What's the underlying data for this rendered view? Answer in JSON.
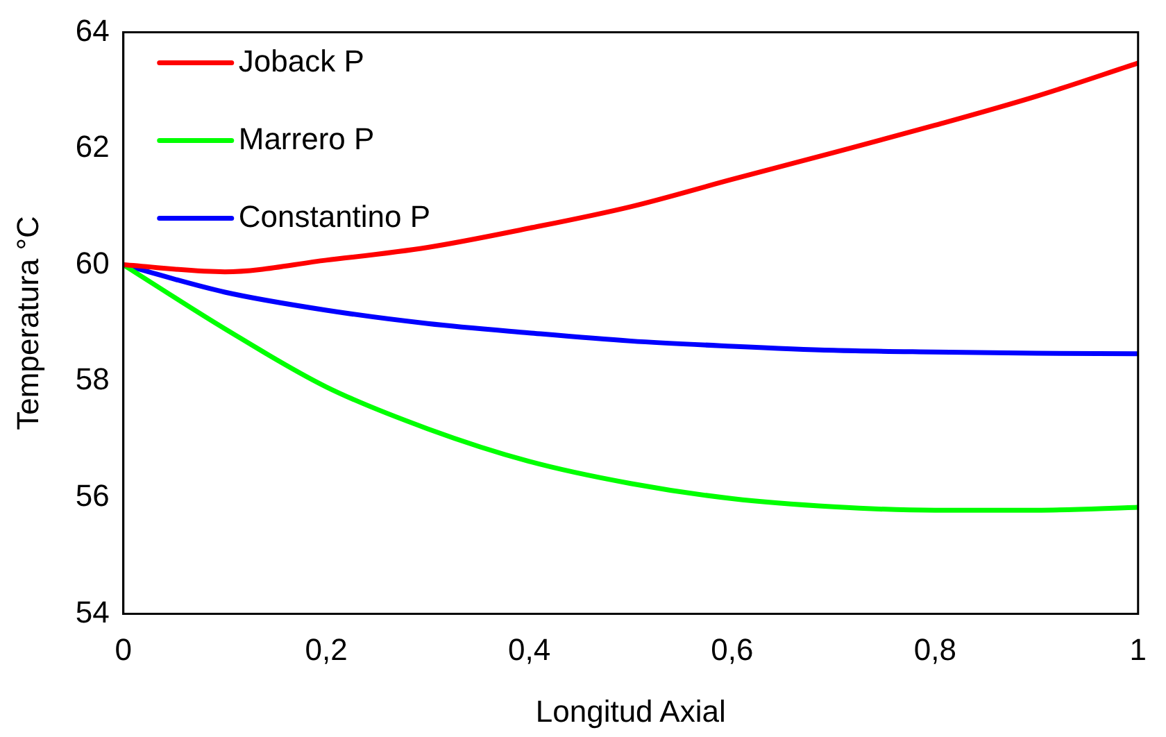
{
  "chart_data": {
    "type": "line",
    "xlabel": "Longitud Axial",
    "ylabel": "Temperatura °C",
    "x": [
      0,
      0.1,
      0.2,
      0.3,
      0.4,
      0.5,
      0.6,
      0.7,
      0.8,
      0.9,
      1
    ],
    "series": [
      {
        "name": "Joback P",
        "color": "#ff0000",
        "values": [
          60,
          59.88,
          60.08,
          60.3,
          60.63,
          61.0,
          61.47,
          61.93,
          62.4,
          62.9,
          63.47
        ]
      },
      {
        "name": "Marrero P",
        "color": "#00ff00",
        "values": [
          60,
          58.9,
          57.9,
          57.18,
          56.62,
          56.24,
          55.98,
          55.84,
          55.78,
          55.78,
          55.83
        ]
      },
      {
        "name": "Constantino P",
        "color": "#0000ff",
        "values": [
          60,
          59.53,
          59.22,
          58.99,
          58.83,
          58.69,
          58.6,
          58.53,
          58.5,
          58.48,
          58.47
        ]
      }
    ],
    "xlim": [
      0,
      1
    ],
    "xticks": [
      {
        "value": 0,
        "label": "0"
      },
      {
        "value": 0.2,
        "label": "0,2"
      },
      {
        "value": 0.4,
        "label": "0,4"
      },
      {
        "value": 0.6,
        "label": "0,6"
      },
      {
        "value": 0.8,
        "label": "0,8"
      },
      {
        "value": 1,
        "label": "1"
      }
    ],
    "ylim": [
      54,
      64
    ],
    "yticks": [
      54,
      56,
      58,
      60,
      62,
      64
    ],
    "grid": false,
    "legend": "top left",
    "marker": "none",
    "line_style": "solid"
  }
}
